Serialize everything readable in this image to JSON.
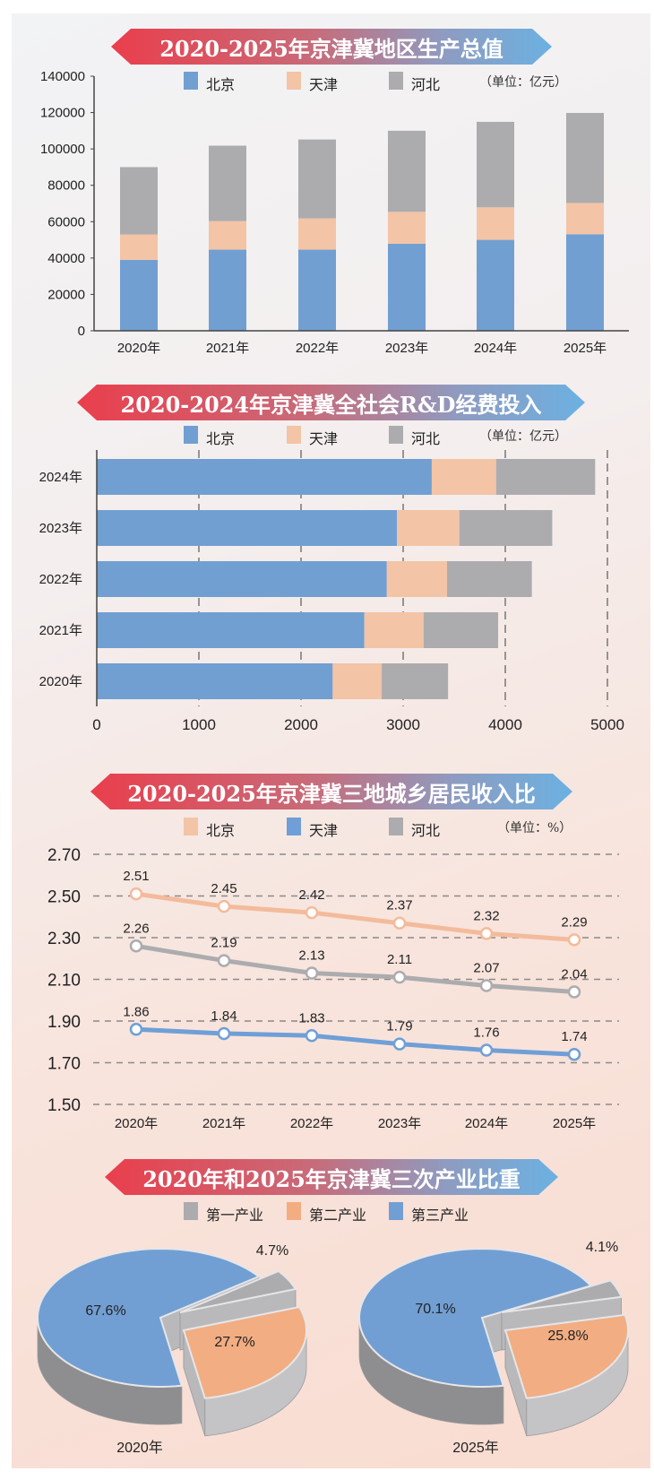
{
  "colors": {
    "beijing": "#719fd2",
    "tianjin": "#f3c4a6",
    "hebei": "#acacaf",
    "pie_orange": "#f2ad82",
    "pie_blue": "#729fd3",
    "pie_gray": "#b4b4b6"
  },
  "chart_data": [
    {
      "type": "bar",
      "orientation": "vertical",
      "stacked": true,
      "title": "2020-2025年京津冀地区生产总值",
      "unit": "（单位：亿元）",
      "categories": [
        "2020年",
        "2021年",
        "2022年",
        "2023年",
        "2024年",
        "2025年"
      ],
      "series": [
        {
          "name": "北京",
          "color": "#719fd2",
          "values": [
            39000,
            44600,
            44600,
            47900,
            50000,
            53100
          ]
        },
        {
          "name": "天津",
          "color": "#f3c4a6",
          "values": [
            14000,
            15700,
            17200,
            17500,
            17900,
            17200
          ]
        },
        {
          "name": "河北",
          "color": "#acacaf",
          "values": [
            37000,
            41500,
            43400,
            44600,
            47000,
            49500
          ]
        }
      ],
      "yticks": [
        "0",
        "20000",
        "40000",
        "60000",
        "80000",
        "100000",
        "120000",
        "140000"
      ],
      "ylim": [
        0,
        140000
      ],
      "grid": false,
      "legend": "top"
    },
    {
      "type": "bar",
      "orientation": "horizontal",
      "stacked": true,
      "title": "2020-2024年京津冀全社会R&D经费投入",
      "unit": "（单位：亿元）",
      "categories": [
        "2020年",
        "2021年",
        "2022年",
        "2023年",
        "2024年"
      ],
      "series": [
        {
          "name": "北京",
          "color": "#719fd2",
          "values": [
            2310,
            2620,
            2840,
            2940,
            3280
          ]
        },
        {
          "name": "天津",
          "color": "#f3c4a6",
          "values": [
            480,
            580,
            590,
            610,
            630
          ]
        },
        {
          "name": "河北",
          "color": "#acacaf",
          "values": [
            650,
            730,
            830,
            910,
            970
          ]
        }
      ],
      "xticks": [
        "0",
        "1000",
        "2000",
        "3000",
        "4000",
        "5000"
      ],
      "xlim": [
        0,
        5000
      ],
      "grid": true,
      "legend": "top"
    },
    {
      "type": "line",
      "title": "2020-2025年京津冀三地城乡居民收入比",
      "unit": "（单位：%）",
      "categories": [
        "2020年",
        "2021年",
        "2022年",
        "2023年",
        "2024年",
        "2025年"
      ],
      "series": [
        {
          "name": "北京",
          "color": "#f3bb9c",
          "values": [
            2.51,
            2.45,
            2.42,
            2.37,
            2.32,
            2.29
          ],
          "labels": [
            "2.51",
            "2.45",
            "2.42",
            "2.37",
            "2.32",
            "2.29"
          ]
        },
        {
          "name": "天津",
          "color": "#6f9fd6",
          "values": [
            1.86,
            1.84,
            1.83,
            1.79,
            1.76,
            1.74
          ],
          "labels": [
            "1.86",
            "1.84",
            "1.83",
            "1.79",
            "1.76",
            "1.74"
          ]
        },
        {
          "name": "河北",
          "color": "#acacaf",
          "values": [
            2.26,
            2.19,
            2.13,
            2.11,
            2.07,
            2.04
          ],
          "labels": [
            "2.26",
            "2.19",
            "2.13",
            "2.11",
            "2.07",
            "2.04"
          ]
        }
      ],
      "yticks": [
        "1.50",
        "1.70",
        "1.90",
        "2.10",
        "2.30",
        "2.50",
        "2.70"
      ],
      "ylim": [
        1.5,
        2.7
      ],
      "grid": true,
      "legend": "top"
    },
    {
      "type": "pie",
      "title": "2020年和2025年京津冀三次产业比重",
      "categories": [
        {
          "name": "第一产业",
          "color": "#acacaf"
        },
        {
          "name": "第二产业",
          "color": "#f2ad82"
        },
        {
          "name": "第三产业",
          "color": "#729fd3"
        }
      ],
      "pies": [
        {
          "label": "2020年",
          "values": [
            4.7,
            27.7,
            67.6
          ],
          "value_labels": [
            "4.7%",
            "27.7%",
            "67.6%"
          ]
        },
        {
          "label": "2025年",
          "values": [
            4.1,
            25.8,
            70.1
          ],
          "value_labels": [
            "4.1%",
            "25.8%",
            "70.1%"
          ]
        }
      ],
      "legend": "top"
    }
  ]
}
